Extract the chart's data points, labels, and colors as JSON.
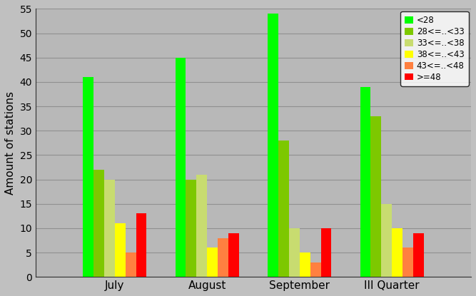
{
  "categories": [
    "July",
    "August",
    "September",
    "III Quarter"
  ],
  "series": [
    {
      "label": "<28",
      "color": "#00FF00",
      "values": [
        41,
        45,
        54,
        39
      ]
    },
    {
      "label": "28<=..<33",
      "color": "#7DC800",
      "values": [
        22,
        20,
        28,
        33
      ]
    },
    {
      "label": "33<=..<38",
      "color": "#C8DC70",
      "values": [
        20,
        21,
        10,
        15
      ]
    },
    {
      "label": "38<=..<43",
      "color": "#FFFF00",
      "values": [
        11,
        6,
        5,
        10
      ]
    },
    {
      "label": "43<=..<48",
      "color": "#FF8040",
      "values": [
        5,
        8,
        3,
        6
      ]
    },
    {
      "label": ">=48",
      "color": "#FF0000",
      "values": [
        13,
        9,
        10,
        9
      ]
    }
  ],
  "ylabel": "Amount of stations",
  "ylim": [
    0,
    55
  ],
  "yticks": [
    0,
    5,
    10,
    15,
    20,
    25,
    30,
    35,
    40,
    45,
    50,
    55
  ],
  "background_color": "#C0C0C0",
  "plot_bg_color": "#B8B8B8",
  "grid_color": "#909090",
  "figsize": [
    6.67,
    4.15
  ],
  "dpi": 100
}
